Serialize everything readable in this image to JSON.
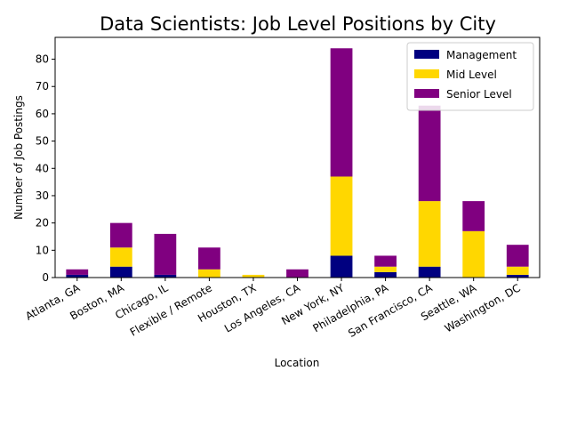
{
  "chart_data": {
    "type": "bar",
    "stacked": true,
    "title": "Data Scientists: Job Level Positions by City",
    "xlabel": "Location",
    "ylabel": "Number of Job Postings",
    "ylim": [
      0,
      88
    ],
    "yticks": [
      0,
      10,
      20,
      30,
      40,
      50,
      60,
      70,
      80
    ],
    "grid": false,
    "legend_position": "top-right",
    "categories": [
      "Atlanta, GA",
      "Boston, MA",
      "Chicago, IL",
      "Flexible / Remote",
      "Houston, TX",
      "Los Angeles, CA",
      "New York, NY",
      "Philadelphia, PA",
      "San Francisco, CA",
      "Seattle, WA",
      "Washington, DC"
    ],
    "series": [
      {
        "name": "Management",
        "color": "#000080",
        "values": [
          1,
          4,
          1,
          0,
          0,
          0,
          8,
          2,
          4,
          0,
          1
        ]
      },
      {
        "name": "Mid Level",
        "color": "#ffd700",
        "values": [
          0,
          7,
          0,
          3,
          1,
          0,
          29,
          2,
          24,
          17,
          3
        ]
      },
      {
        "name": "Senior Level",
        "color": "#800080",
        "values": [
          2,
          9,
          15,
          8,
          0,
          3,
          47,
          4,
          35,
          11,
          8
        ]
      }
    ]
  }
}
